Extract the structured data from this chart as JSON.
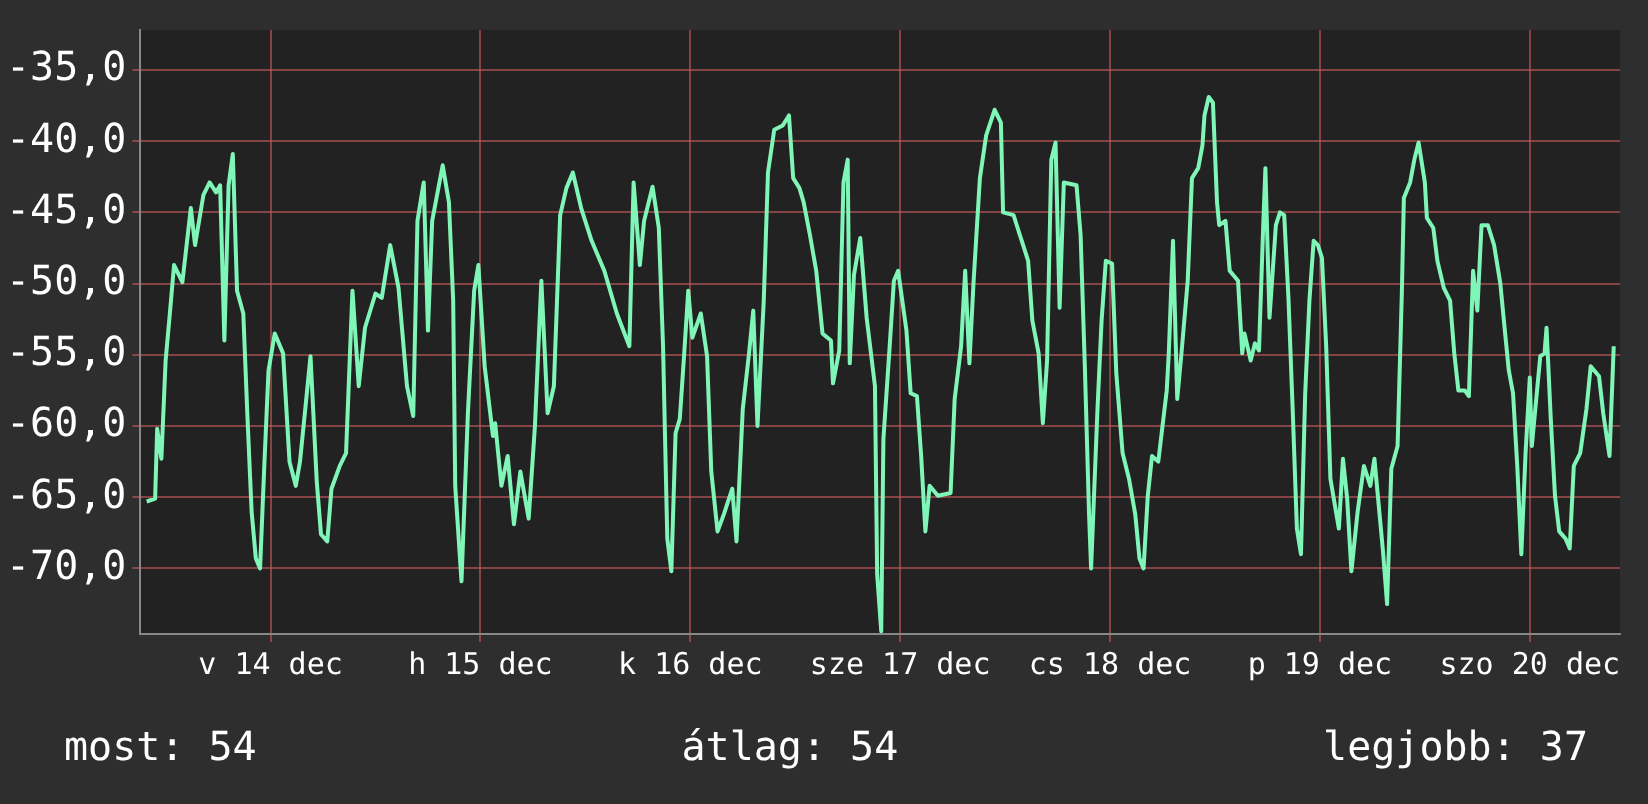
{
  "chart_data": {
    "type": "line",
    "x": [
      "--12-13T21:50",
      "--12-13T22:48",
      "--12-13T23:02",
      "--12-13T23:31",
      "--12-14T00:00",
      "--12-14T00:29",
      "--12-14T00:58",
      "--12-14T01:55",
      "--12-14T02:53",
      "--12-14T03:22",
      "--12-14T04:19",
      "--12-14T05:02",
      "--12-14T05:46",
      "--12-14T06:14",
      "--12-14T06:43",
      "--12-14T07:12",
      "--12-14T07:41",
      "--12-14T08:10",
      "--12-14T08:53",
      "--12-14T09:22",
      "--12-14T09:50",
      "--12-14T10:19",
      "--12-14T10:48",
      "--12-14T11:17",
      "--12-14T11:46",
      "--12-14T12:29",
      "--12-14T13:26",
      "--12-14T14:10",
      "--12-14T14:53",
      "--12-14T15:22",
      "--12-14T16:05",
      "--12-14T16:34",
      "--12-14T17:17",
      "--12-14T17:46",
      "--12-14T18:29",
      "--12-14T18:58",
      "--12-14T19:55",
      "--12-14T20:38",
      "--12-14T21:22",
      "--12-14T22:05",
      "--12-14T22:48",
      "--12-15T00:00",
      "--12-15T00:43",
      "--12-15T01:41",
      "--12-15T02:38",
      "--12-15T03:36",
      "--12-15T04:19",
      "--12-15T04:48",
      "--12-15T05:31",
      "--12-15T06:00",
      "--12-15T06:29",
      "--12-15T07:41",
      "--12-15T08:24",
      "--12-15T08:53",
      "--12-15T09:07",
      "--12-15T09:50",
      "--12-15T10:34",
      "--12-15T11:17",
      "--12-15T11:46",
      "--12-15T12:29",
      "--12-15T13:26",
      "--12-15T13:41",
      "--12-15T14:24",
      "--12-15T15:07",
      "--12-15T15:50",
      "--12-15T16:34",
      "--12-15T17:31",
      "--12-15T18:14",
      "--12-15T18:58",
      "--12-15T19:41",
      "--12-15T20:24",
      "--12-15T21:07",
      "--12-15T21:50",
      "--12-15T22:34",
      "--12-15T23:31",
      "--12-16T00:43",
      "--12-16T02:10",
      "--12-16T03:36",
      "--12-16T05:02",
      "--12-16T05:31",
      "--12-16T06:14",
      "--12-16T06:43",
      "--12-16T07:41",
      "--12-16T08:24",
      "--12-16T08:53",
      "--12-16T09:22",
      "--12-16T09:50",
      "--12-16T10:19",
      "--12-16T10:48",
      "--12-16T11:17",
      "--12-16T11:46",
      "--12-16T12:14",
      "--12-16T13:12",
      "--12-16T13:55",
      "--12-16T14:24",
      "--12-16T15:07",
      "--12-16T15:50",
      "--12-16T16:48",
      "--12-16T17:17",
      "--12-16T18:00",
      "--12-16T18:43",
      "--12-16T19:12",
      "--12-16T19:41",
      "--12-16T20:24",
      "--12-16T20:53",
      "--12-16T21:36",
      "--12-16T22:34",
      "--12-16T23:17",
      "--12-16T23:46",
      "--12-17T00:29",
      "--12-17T00:58",
      "--12-17T01:41",
      "--12-17T02:24",
      "--12-17T03:07",
      "--12-17T04:05",
      "--12-17T04:19",
      "--12-17T05:02",
      "--12-17T05:31",
      "--12-17T06:00",
      "--12-17T06:14",
      "--12-17T06:43",
      "--12-17T07:26",
      "--12-17T08:10",
      "--12-17T09:07",
      "--12-17T09:22",
      "--12-17T09:50",
      "--12-17T10:05",
      "--12-17T10:48",
      "--12-17T11:17",
      "--12-17T11:46",
      "--12-17T12:43",
      "--12-17T13:12",
      "--12-17T13:55",
      "--12-17T14:24",
      "--12-17T14:53",
      "--12-17T15:22",
      "--12-17T16:19",
      "--12-17T17:46",
      "--12-17T18:14",
      "--12-17T18:58",
      "--12-17T19:26",
      "--12-17T19:55",
      "--12-17T20:24",
      "--12-17T21:07",
      "--12-17T21:50",
      "--12-17T22:48",
      "--12-17T23:31",
      "--12-17T23:46",
      "--12-18T00:58",
      "--12-18T01:26",
      "--12-18T02:38",
      "--12-18T03:07",
      "--12-18T03:50",
      "--12-18T04:19",
      "--12-18T04:48",
      "--12-18T05:17",
      "--12-18T05:46",
      "--12-18T06:14",
      "--12-18T06:43",
      "--12-18T08:10",
      "--12-18T08:38",
      "--12-18T09:07",
      "--12-18T09:36",
      "--12-18T09:50",
      "--12-18T10:34",
      "--12-18T11:02",
      "--12-18T11:31",
      "--12-18T12:14",
      "--12-18T12:43",
      "--12-18T13:26",
      "--12-18T14:10",
      "--12-18T14:53",
      "--12-18T15:22",
      "--12-18T15:50",
      "--12-18T16:19",
      "--12-18T16:48",
      "--12-18T17:31",
      "--12-18T18:00",
      "--12-18T18:29",
      "--12-18T18:43",
      "--12-18T19:12",
      "--12-18T19:41",
      "--12-18T20:10",
      "--12-18T20:53",
      "--12-18T21:22",
      "--12-18T22:05",
      "--12-18T22:34",
      "--12-18T22:48",
      "--12-18T23:17",
      "--12-18T23:46",
      "--12-19T00:14",
      "--12-19T00:29",
      "--12-19T01:12",
      "--12-19T01:41",
      "--12-19T02:38",
      "--12-19T03:07",
      "--12-19T03:22",
      "--12-19T04:05",
      "--12-19T04:34",
      "--12-19T05:02",
      "--12-19T05:31",
      "--12-19T05:46",
      "--12-19T06:14",
      "--12-19T06:58",
      "--12-19T07:26",
      "--12-19T07:55",
      "--12-19T08:24",
      "--12-19T08:53",
      "--12-19T09:22",
      "--12-19T09:50",
      "--12-19T10:19",
      "--12-19T10:48",
      "--12-19T11:17",
      "--12-19T11:46",
      "--12-19T12:14",
      "--12-19T12:43",
      "--12-19T13:12",
      "--12-19T14:10",
      "--12-19T14:38",
      "--12-19T15:07",
      "--12-19T15:36",
      "--12-19T16:19",
      "--12-19T17:02",
      "--12-19T17:46",
      "--12-19T18:14",
      "--12-19T19:12",
      "--12-19T19:41",
      "--12-19T20:10",
      "--12-19T20:53",
      "--12-19T21:22",
      "--12-19T21:36",
      "--12-19T22:19",
      "--12-19T22:48",
      "--12-19T23:17",
      "--12-20T00:00",
      "--12-20T00:14",
      "--12-20T00:58",
      "--12-20T01:26",
      "--12-20T02:10",
      "--12-20T02:53",
      "--12-20T03:22",
      "--12-20T03:50",
      "--12-20T04:34",
      "--12-20T05:02",
      "--12-20T05:31",
      "--12-20T06:00",
      "--12-20T06:29",
      "--12-20T07:12",
      "--12-20T07:55",
      "--12-20T08:38",
      "--12-20T09:07",
      "--12-20T09:36",
      "--12-20T10:05",
      "--12-20T10:34",
      "--12-20T11:02",
      "--12-20T11:31",
      "--12-20T12:00",
      "--12-20T12:14",
      "--12-20T13:12",
      "--12-20T13:41",
      "--12-20T13:55",
      "--12-20T14:24",
      "--12-20T14:53",
      "--12-20T15:22",
      "--12-20T16:05",
      "--12-20T16:34",
      "--12-20T17:02",
      "--12-20T17:46",
      "--12-20T18:29",
      "--12-20T18:58",
      "--12-20T19:55",
      "--12-20T20:24",
      "--12-20T21:07",
      "--12-20T21:36"
    ],
    "series": [
      {
        "color": "#80f5b8",
        "values": [
          -65.3,
          -65.1,
          -60.2,
          -62.3,
          -55.4,
          -52.1,
          -48.7,
          -49.9,
          -44.7,
          -47.3,
          -43.8,
          -42.9,
          -43.6,
          -43.1,
          -54.0,
          -43.1,
          -40.9,
          -50.5,
          -52.1,
          -59.5,
          -66.0,
          -69.3,
          -70.0,
          -62.8,
          -56.1,
          -53.5,
          -54.9,
          -62.5,
          -64.2,
          -62.5,
          -58.1,
          -55.1,
          -63.9,
          -67.6,
          -68.1,
          -64.4,
          -62.8,
          -61.9,
          -50.5,
          -57.2,
          -53.1,
          -50.7,
          -51.0,
          -47.3,
          -50.3,
          -57.2,
          -59.3,
          -45.6,
          -42.9,
          -53.3,
          -45.6,
          -41.7,
          -44.3,
          -51.2,
          -64.2,
          -70.9,
          -59.1,
          -50.5,
          -48.7,
          -55.8,
          -60.7,
          -59.8,
          -64.2,
          -62.1,
          -66.9,
          -63.2,
          -66.5,
          -60.0,
          -49.8,
          -59.1,
          -57.2,
          -45.2,
          -43.3,
          -42.2,
          -44.7,
          -47.0,
          -49.1,
          -52.1,
          -54.4,
          -42.9,
          -48.7,
          -45.6,
          -43.2,
          -46.1,
          -54.4,
          -67.9,
          -70.2,
          -60.5,
          -59.5,
          -55.1,
          -50.5,
          -53.8,
          -52.1,
          -55.1,
          -63.2,
          -67.4,
          -66.2,
          -64.4,
          -68.1,
          -58.8,
          -54.9,
          -51.9,
          -60.0,
          -51.2,
          -42.2,
          -39.2,
          -38.9,
          -38.2,
          -42.6,
          -43.3,
          -44.3,
          -46.6,
          -49.1,
          -53.5,
          -54.0,
          -57.0,
          -54.7,
          -42.9,
          -41.3,
          -55.6,
          -49.4,
          -46.8,
          -52.4,
          -57.2,
          -70.4,
          -74.4,
          -60.9,
          -54.4,
          -49.8,
          -49.1,
          -53.3,
          -57.7,
          -57.9,
          -62.1,
          -67.4,
          -64.2,
          -64.9,
          -64.7,
          -58.1,
          -54.4,
          -49.1,
          -55.6,
          -49.8,
          -42.6,
          -39.6,
          -37.8,
          -38.7,
          -45.0,
          -45.2,
          -46.1,
          -48.4,
          -52.6,
          -54.9,
          -59.8,
          -55.4,
          -41.3,
          -40.1,
          -51.7,
          -42.9,
          -43.1,
          -46.6,
          -55.8,
          -66.2,
          -70.0,
          -58.8,
          -52.6,
          -48.4,
          -48.6,
          -56.3,
          -61.9,
          -63.7,
          -66.2,
          -69.3,
          -70.0,
          -64.9,
          -62.1,
          -62.5,
          -60.0,
          -57.5,
          -54.9,
          -47.0,
          -58.1,
          -54.9,
          -49.8,
          -42.6,
          -41.9,
          -40.3,
          -38.2,
          -36.9,
          -37.3,
          -44.3,
          -45.9,
          -45.6,
          -49.1,
          -49.8,
          -54.9,
          -53.5,
          -55.4,
          -54.2,
          -54.7,
          -45.9,
          -41.9,
          -52.4,
          -45.9,
          -45.0,
          -45.2,
          -51.0,
          -58.8,
          -67.2,
          -69.0,
          -57.7,
          -51.2,
          -47.0,
          -47.3,
          -48.2,
          -54.4,
          -63.7,
          -67.2,
          -62.3,
          -65.1,
          -70.2,
          -66.0,
          -62.8,
          -64.2,
          -62.3,
          -68.7,
          -72.5,
          -63.0,
          -61.4,
          -50.7,
          -44.0,
          -42.9,
          -41.3,
          -40.1,
          -42.9,
          -45.4,
          -46.1,
          -48.4,
          -50.3,
          -51.2,
          -54.9,
          -57.5,
          -57.5,
          -57.9,
          -49.1,
          -51.9,
          -45.9,
          -45.9,
          -47.3,
          -50.0,
          -53.1,
          -56.1,
          -57.7,
          -62.8,
          -69.0,
          -61.9,
          -56.6,
          -61.4,
          -55.1,
          -54.9,
          -53.1,
          -59.5,
          -64.9,
          -67.4,
          -67.9,
          -68.6,
          -62.8,
          -61.9,
          -58.8,
          -55.8,
          -56.5,
          -59.1,
          -62.1,
          -54.4
        ]
      }
    ],
    "xlim": [
      "--12-13T21:07",
      "--12-20T22:19"
    ],
    "xticks": [
      {
        "value": "--12-14T12:00",
        "label": "v 14 dec"
      },
      {
        "value": "--12-15T12:00",
        "label": "h 15 dec"
      },
      {
        "value": "--12-16T12:00",
        "label": "k 16 dec"
      },
      {
        "value": "--12-17T12:00",
        "label": "sze 17 dec"
      },
      {
        "value": "--12-18T12:00",
        "label": "cs 18 dec"
      },
      {
        "value": "--12-19T12:00",
        "label": "p 19 dec"
      },
      {
        "value": "--12-20T12:00",
        "label": "szo 20 dec"
      }
    ],
    "ylim": [
      -74.6,
      -32.2
    ],
    "yticks": [
      {
        "value": -35,
        "label": "-35,0"
      },
      {
        "value": -40,
        "label": "-40,0"
      },
      {
        "value": -45,
        "label": "-45,0"
      },
      {
        "value": -50,
        "label": "-50,0"
      },
      {
        "value": -55,
        "label": "-55,0"
      },
      {
        "value": -60,
        "label": "-60,0"
      },
      {
        "value": -65,
        "label": "-65,0"
      },
      {
        "value": -70,
        "label": "-70,0"
      }
    ],
    "grid": true,
    "marker": "none",
    "line_style": "solid",
    "annotations": [
      "most: 54",
      "átlag: 54",
      "legjobb: 37"
    ]
  }
}
